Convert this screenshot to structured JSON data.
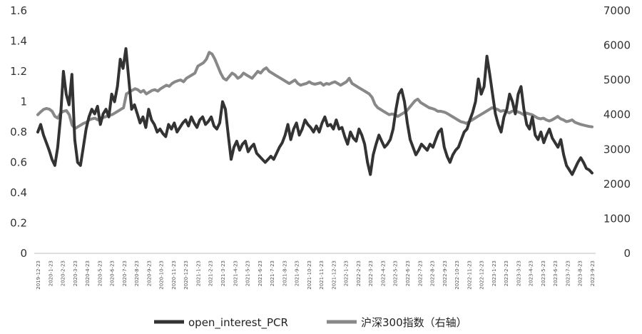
{
  "chart_data": {
    "type": "line",
    "title": "",
    "ylim_left": [
      0,
      1.6
    ],
    "ylim_right": [
      0,
      7000
    ],
    "left_ticks": [
      "0",
      "0.2",
      "0.4",
      "0.6",
      "0.8",
      "1",
      "1.2",
      "1.4",
      "1.6"
    ],
    "right_ticks": [
      "0",
      "1000",
      "2000",
      "3000",
      "4000",
      "5000",
      "6000",
      "7000"
    ],
    "x_ticks": [
      "2019-12-23",
      "2020-1-23",
      "2020-2-23",
      "2020-3-23",
      "2020-4-23",
      "2020-5-23",
      "2020-6-23",
      "2020-7-23",
      "2020-8-23",
      "2020-9-23",
      "2020-10-23",
      "2020-11-23",
      "2020-12-23",
      "2021-1-23",
      "2021-2-23",
      "2021-3-23",
      "2021-4-23",
      "2021-5-23",
      "2021-6-23",
      "2021-7-23",
      "2021-8-23",
      "2021-9-23",
      "2021-10-23",
      "2021-11-23",
      "2021-12-23",
      "2022-1-23",
      "2022-2-23",
      "2022-3-23",
      "2022-4-23",
      "2022-5-23",
      "2022-6-23",
      "2022-7-23",
      "2022-8-23",
      "2022-9-23",
      "2022-10-23",
      "2022-11-23",
      "2022-12-23",
      "2023-1-23",
      "2023-2-23",
      "2023-3-23",
      "2023-4-23",
      "2023-5-23",
      "2023-6-23",
      "2023-7-23",
      "2023-8-23",
      "2023-9-23"
    ],
    "grid": false,
    "legend_position": "bottom",
    "series": [
      {
        "name": "open_interest_PCR",
        "axis": "left",
        "color": "#333333",
        "values": [
          0.8,
          0.85,
          0.78,
          0.73,
          0.68,
          0.62,
          0.58,
          0.7,
          0.9,
          1.2,
          1.05,
          0.98,
          1.18,
          0.75,
          0.6,
          0.58,
          0.7,
          0.82,
          0.9,
          0.95,
          0.92,
          0.97,
          0.85,
          0.92,
          0.95,
          0.9,
          1.05,
          1.0,
          1.1,
          1.28,
          1.22,
          1.35,
          1.15,
          0.95,
          0.98,
          0.92,
          0.86,
          0.9,
          0.83,
          0.95,
          0.88,
          0.85,
          0.8,
          0.82,
          0.79,
          0.77,
          0.85,
          0.82,
          0.86,
          0.8,
          0.83,
          0.86,
          0.88,
          0.84,
          0.9,
          0.86,
          0.83,
          0.88,
          0.9,
          0.85,
          0.87,
          0.9,
          0.84,
          0.82,
          0.86,
          1.0,
          0.95,
          0.78,
          0.62,
          0.7,
          0.74,
          0.68,
          0.72,
          0.74,
          0.67,
          0.7,
          0.72,
          0.66,
          0.64,
          0.62,
          0.6,
          0.62,
          0.64,
          0.62,
          0.66,
          0.7,
          0.73,
          0.78,
          0.85,
          0.75,
          0.82,
          0.86,
          0.78,
          0.82,
          0.88,
          0.85,
          0.83,
          0.8,
          0.84,
          0.8,
          0.86,
          0.9,
          0.84,
          0.85,
          0.82,
          0.88,
          0.82,
          0.83,
          0.77,
          0.72,
          0.8,
          0.76,
          0.74,
          0.82,
          0.78,
          0.72,
          0.6,
          0.52,
          0.65,
          0.72,
          0.78,
          0.74,
          0.7,
          0.72,
          0.75,
          0.82,
          0.95,
          1.05,
          1.08,
          1.0,
          0.86,
          0.75,
          0.7,
          0.65,
          0.68,
          0.72,
          0.7,
          0.68,
          0.72,
          0.7,
          0.75,
          0.8,
          0.82,
          0.7,
          0.64,
          0.6,
          0.65,
          0.68,
          0.7,
          0.75,
          0.8,
          0.82,
          0.88,
          0.93,
          1.0,
          1.15,
          1.05,
          1.1,
          1.3,
          1.18,
          1.05,
          0.92,
          0.85,
          0.8,
          0.9,
          0.95,
          1.05,
          1.0,
          0.92,
          1.05,
          1.1,
          0.95,
          0.85,
          0.82,
          0.9,
          0.78,
          0.75,
          0.8,
          0.73,
          0.78,
          0.82,
          0.76,
          0.73,
          0.7,
          0.75,
          0.65,
          0.58,
          0.55,
          0.52,
          0.56,
          0.6,
          0.63,
          0.6,
          0.56,
          0.55,
          0.53
        ]
      },
      {
        "name": "沪深300指数（右轴）",
        "axis": "right",
        "color": "#888888",
        "values": [
          4000,
          4080,
          4150,
          4180,
          4160,
          4100,
          3950,
          3900,
          4050,
          4100,
          4120,
          4000,
          3700,
          3600,
          3650,
          3700,
          3750,
          3780,
          3850,
          3880,
          3900,
          3850,
          3900,
          3920,
          3950,
          3980,
          4000,
          4050,
          4100,
          4150,
          4200,
          4600,
          4650,
          4700,
          4750,
          4720,
          4650,
          4700,
          4600,
          4650,
          4700,
          4720,
          4680,
          4750,
          4800,
          4850,
          4820,
          4900,
          4950,
          4980,
          5000,
          4950,
          5050,
          5100,
          5150,
          5200,
          5400,
          5450,
          5500,
          5600,
          5800,
          5750,
          5600,
          5400,
          5200,
          5050,
          5000,
          5100,
          5200,
          5150,
          5050,
          5100,
          5200,
          5150,
          5100,
          5050,
          5150,
          5250,
          5200,
          5300,
          5350,
          5250,
          5200,
          5150,
          5100,
          5050,
          5000,
          4950,
          4900,
          4950,
          5000,
          4900,
          4850,
          4880,
          4900,
          4950,
          4900,
          4880,
          4900,
          4920,
          4850,
          4900,
          4880,
          4920,
          4950,
          4900,
          4850,
          4900,
          4950,
          5050,
          4900,
          4850,
          4800,
          4750,
          4700,
          4650,
          4600,
          4500,
          4300,
          4200,
          4150,
          4100,
          4050,
          4000,
          4020,
          4000,
          3950,
          4000,
          4050,
          4100,
          4200,
          4300,
          4400,
          4450,
          4350,
          4300,
          4250,
          4200,
          4180,
          4150,
          4100,
          4100,
          4080,
          4050,
          4000,
          3950,
          3900,
          3850,
          3800,
          3780,
          3750,
          3800,
          3850,
          3900,
          3950,
          4000,
          4050,
          4100,
          4150,
          4200,
          4180,
          4150,
          4100,
          4120,
          4100,
          4050,
          4100,
          4120,
          4080,
          4050,
          4000,
          4050,
          4020,
          4000,
          3950,
          3900,
          3880,
          3900,
          3850,
          3820,
          3850,
          3900,
          3950,
          3880,
          3850,
          3800,
          3820,
          3850,
          3780,
          3750,
          3720,
          3700,
          3680,
          3660,
          3650
        ]
      }
    ]
  }
}
